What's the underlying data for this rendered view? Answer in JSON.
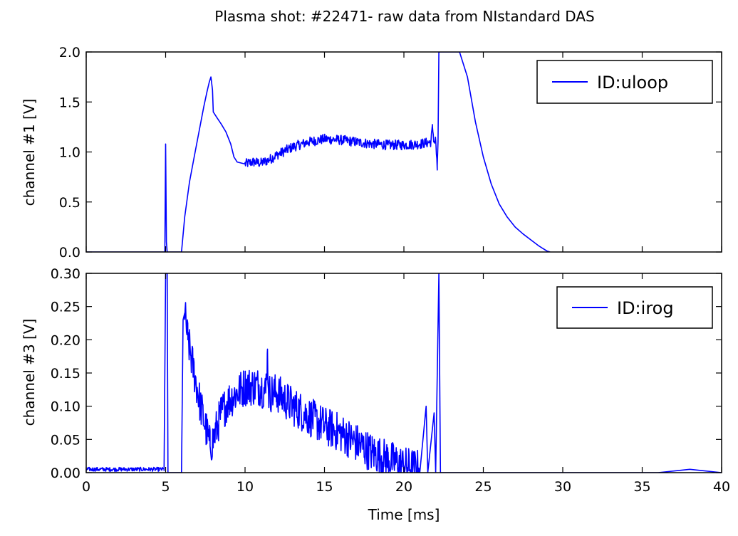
{
  "title": "Plasma shot: #22471- raw data from NIstandard DAS",
  "chart_data": [
    {
      "type": "line",
      "xlabel": "",
      "ylabel": "channel #1 [V]",
      "xlim": [
        0,
        40
      ],
      "ylim": [
        0,
        2.0
      ],
      "xticks": [
        "0",
        "5",
        "10",
        "15",
        "20",
        "25",
        "30",
        "35",
        "40"
      ],
      "xtick_values": [
        0,
        5,
        10,
        15,
        20,
        25,
        30,
        35,
        40
      ],
      "xtick_labels_visible": false,
      "yticks": [
        "0.0",
        "0.5",
        "1.0",
        "1.5",
        "2.0"
      ],
      "ytick_values": [
        0,
        0.5,
        1.0,
        1.5,
        2.0
      ],
      "grid": false,
      "legend": {
        "position": "top-right",
        "entries": [
          {
            "label": "ID:uloop",
            "color": "#0000ff"
          }
        ]
      },
      "series": [
        {
          "name": "ID:uloop",
          "color": "#0000ff",
          "points": [
            [
              0,
              0
            ],
            [
              4.95,
              0
            ],
            [
              5.0,
              1.08
            ],
            [
              5.05,
              0.1
            ],
            [
              5.1,
              0
            ],
            [
              6.0,
              0
            ],
            [
              6.2,
              0.35
            ],
            [
              6.5,
              0.7
            ],
            [
              6.8,
              0.95
            ],
            [
              7.1,
              1.2
            ],
            [
              7.4,
              1.45
            ],
            [
              7.6,
              1.6
            ],
            [
              7.75,
              1.7
            ],
            [
              7.85,
              1.75
            ],
            [
              7.95,
              1.62
            ],
            [
              8.0,
              1.4
            ],
            [
              8.2,
              1.35
            ],
            [
              8.5,
              1.28
            ],
            [
              8.8,
              1.2
            ],
            [
              9.1,
              1.08
            ],
            [
              9.3,
              0.95
            ],
            [
              9.5,
              0.9
            ],
            [
              10.0,
              0.88
            ],
            [
              10.5,
              0.9
            ],
            [
              11.0,
              0.89
            ],
            [
              11.5,
              0.92
            ],
            [
              12.0,
              0.97
            ],
            [
              13.0,
              1.05
            ],
            [
              14.0,
              1.1
            ],
            [
              15.0,
              1.13
            ],
            [
              16.0,
              1.12
            ],
            [
              17.0,
              1.1
            ],
            [
              18.0,
              1.08
            ],
            [
              19.0,
              1.07
            ],
            [
              20.0,
              1.07
            ],
            [
              21.0,
              1.08
            ],
            [
              21.7,
              1.1
            ],
            [
              21.8,
              1.25
            ],
            [
              21.9,
              1.1
            ],
            [
              22.0,
              1.12
            ],
            [
              22.1,
              0.82
            ],
            [
              22.15,
              1.1
            ],
            [
              22.2,
              2.0
            ],
            [
              22.25,
              2.0
            ],
            [
              23.5,
              2.0
            ],
            [
              24.0,
              1.75
            ],
            [
              24.5,
              1.3
            ],
            [
              25.0,
              0.95
            ],
            [
              25.5,
              0.68
            ],
            [
              26.0,
              0.48
            ],
            [
              26.5,
              0.35
            ],
            [
              27.0,
              0.25
            ],
            [
              27.5,
              0.18
            ],
            [
              28.0,
              0.12
            ],
            [
              28.5,
              0.06
            ],
            [
              29.0,
              0.01
            ],
            [
              29.2,
              0
            ]
          ],
          "noise": [
            {
              "x": [
                10.0,
                22.1
              ],
              "amplitude": 0.05
            }
          ]
        }
      ]
    },
    {
      "type": "line",
      "xlabel": "Time [ms]",
      "ylabel": "channel #3 [V]",
      "xlim": [
        0,
        40
      ],
      "ylim": [
        0,
        0.3
      ],
      "xticks": [
        "0",
        "5",
        "10",
        "15",
        "20",
        "25",
        "30",
        "35",
        "40"
      ],
      "xtick_values": [
        0,
        5,
        10,
        15,
        20,
        25,
        30,
        35,
        40
      ],
      "yticks": [
        "0.00",
        "0.05",
        "0.10",
        "0.15",
        "0.20",
        "0.25",
        "0.30"
      ],
      "ytick_values": [
        0,
        0.05,
        0.1,
        0.15,
        0.2,
        0.25,
        0.3
      ],
      "grid": false,
      "legend": {
        "position": "top-right",
        "entries": [
          {
            "label": "ID:irog",
            "color": "#0000ff"
          }
        ]
      },
      "series": [
        {
          "name": "ID:irog",
          "color": "#0000ff",
          "points": [
            [
              0,
              0.005
            ],
            [
              4.9,
              0.005
            ],
            [
              5.0,
              0.3
            ],
            [
              5.1,
              0.3
            ],
            [
              5.15,
              0.0
            ],
            [
              6.0,
              0.0
            ],
            [
              6.1,
              0.23
            ],
            [
              6.2,
              0.24
            ],
            [
              6.4,
              0.2
            ],
            [
              6.8,
              0.15
            ],
            [
              7.2,
              0.1
            ],
            [
              7.6,
              0.06
            ],
            [
              7.8,
              0.04
            ],
            [
              8.0,
              0.05
            ],
            [
              8.5,
              0.09
            ],
            [
              9.0,
              0.11
            ],
            [
              9.5,
              0.12
            ],
            [
              10.0,
              0.13
            ],
            [
              10.5,
              0.13
            ],
            [
              11.0,
              0.13
            ],
            [
              11.3,
              0.12
            ],
            [
              11.4,
              0.18
            ],
            [
              11.5,
              0.12
            ],
            [
              12.0,
              0.12
            ],
            [
              13.0,
              0.1
            ],
            [
              14.0,
              0.085
            ],
            [
              15.0,
              0.07
            ],
            [
              16.0,
              0.06
            ],
            [
              17.0,
              0.045
            ],
            [
              18.0,
              0.03
            ],
            [
              19.0,
              0.02
            ],
            [
              20.0,
              0.01
            ],
            [
              21.0,
              0.005
            ],
            [
              21.4,
              0.1
            ],
            [
              21.5,
              0.0
            ],
            [
              21.9,
              0.09
            ],
            [
              22.0,
              0.0
            ],
            [
              22.2,
              0.3
            ],
            [
              22.3,
              0.0
            ],
            [
              36.0,
              0.0
            ],
            [
              38.0,
              0.005
            ],
            [
              40.0,
              0.0
            ]
          ],
          "noise": [
            {
              "x": [
                0.0,
                4.9
              ],
              "amplitude": 0.003
            },
            {
              "x": [
                6.2,
                21.0
              ],
              "amplitude": 0.03
            }
          ]
        }
      ]
    }
  ]
}
